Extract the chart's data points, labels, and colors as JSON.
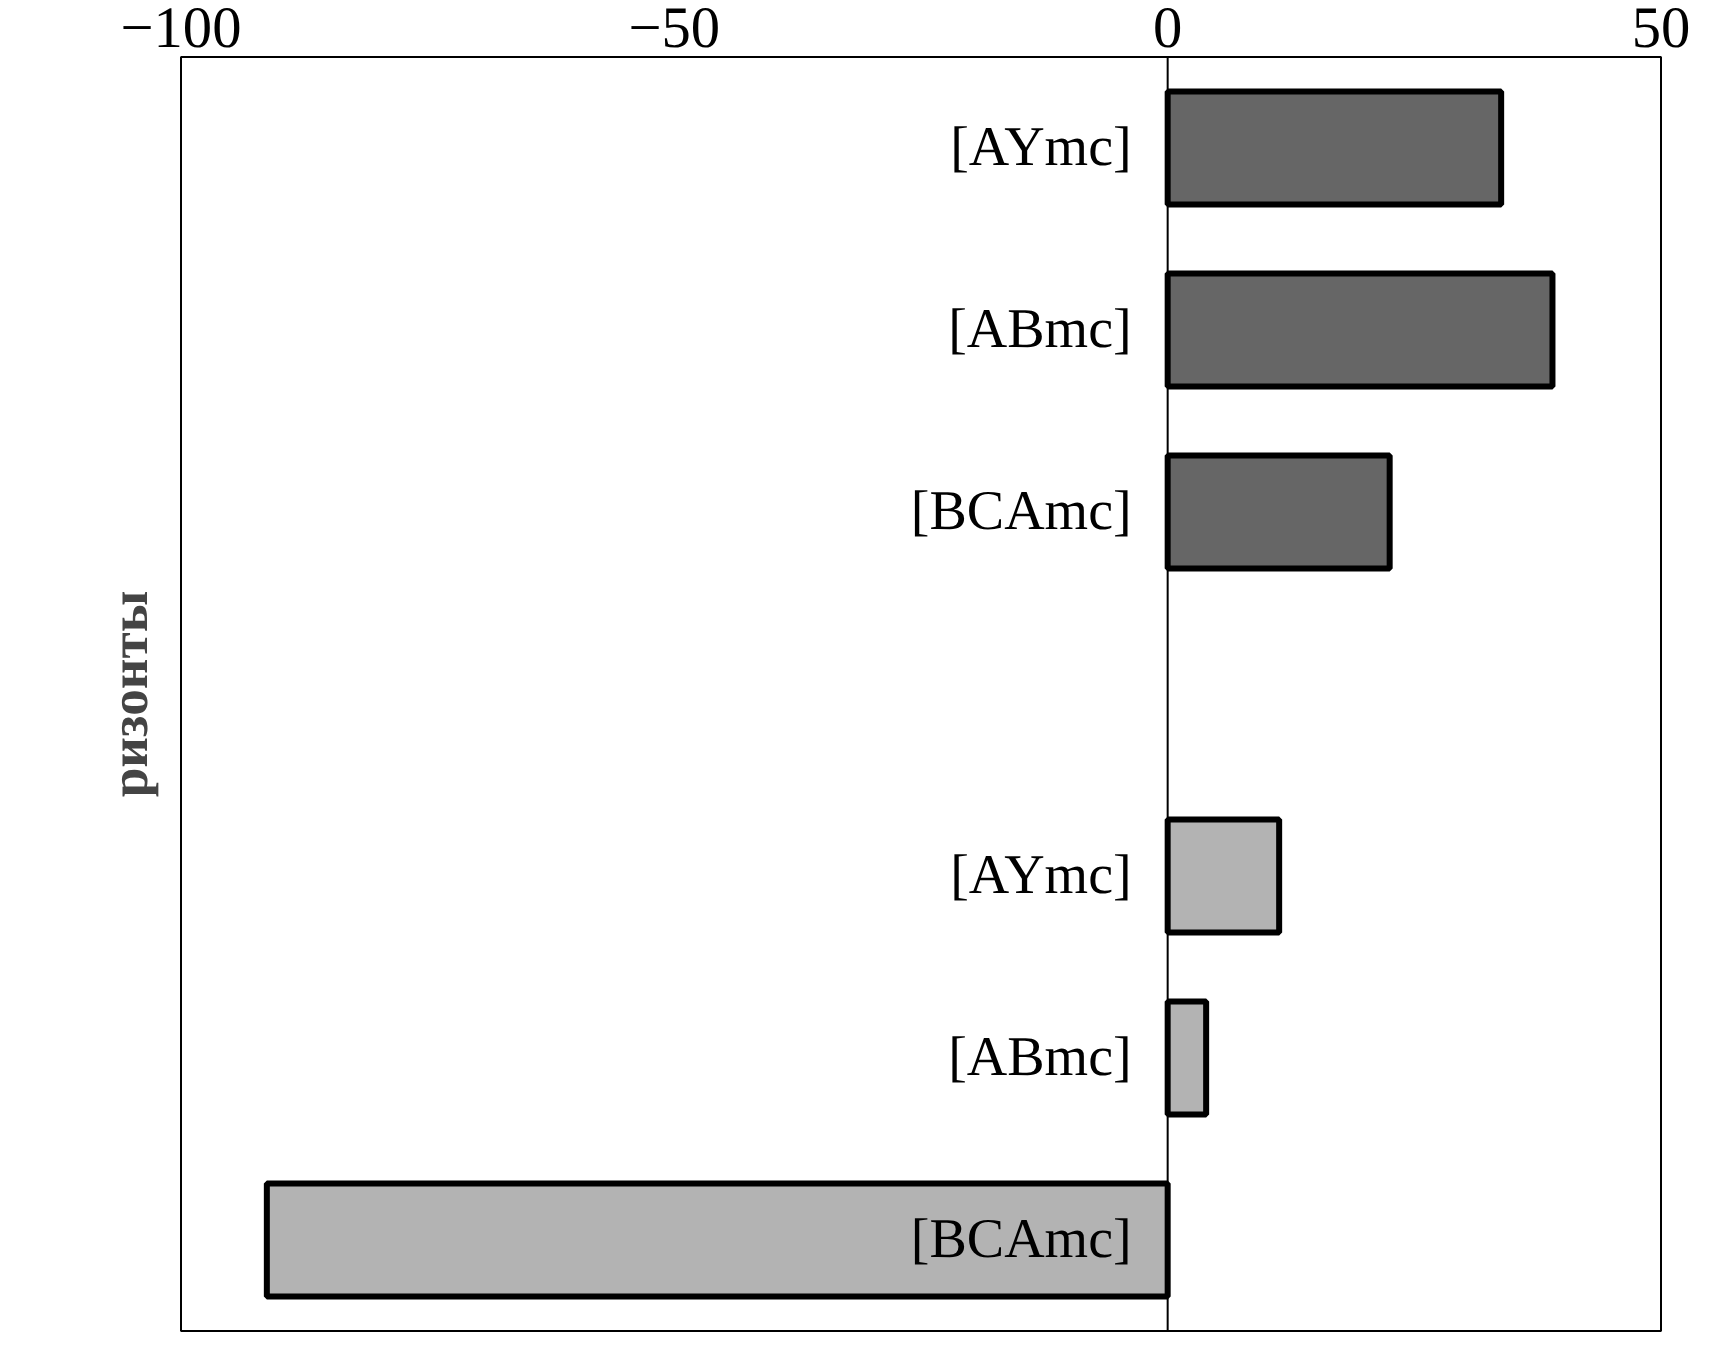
{
  "chart_data": {
    "type": "bar",
    "orientation": "horizontal",
    "ylabel": "ризонты",
    "categories": [
      "[AYmc]",
      "[ABmc]",
      "[BCAmc]",
      null,
      "[AYmc]",
      "[ABmc]",
      "[BCAmc]"
    ],
    "values": [
      33.8,
      39,
      22.5,
      null,
      11.3,
      3.9,
      -91.3
    ],
    "colors": [
      "#666666",
      "#666666",
      "#666666",
      null,
      "#b3b3b3",
      "#b3b3b3",
      "#b3b3b3"
    ],
    "xlim": [
      -100,
      50
    ],
    "xticks": [
      -100,
      -50,
      0,
      50
    ],
    "grid": false
  }
}
